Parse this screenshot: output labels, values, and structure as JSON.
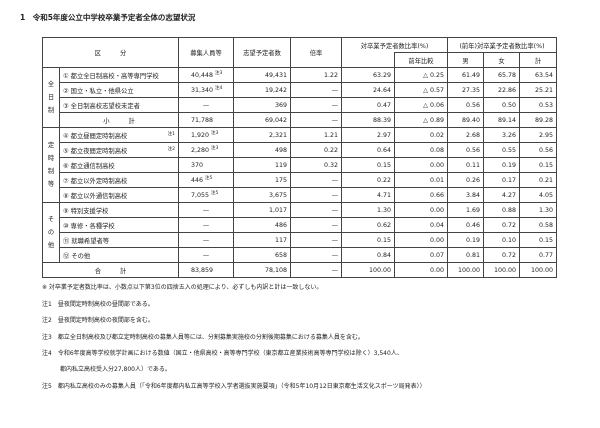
{
  "title": "1　令和5年度公立中学校卒業予定者全体の志望状況",
  "headers": {
    "category": "区　　　分",
    "recruit": "募集人員等",
    "applicants": "志望予定者数",
    "ratio": "倍率",
    "share": "対卒業予定者数比率(%)",
    "prev_compare": "前年比較",
    "prev_share": "(前年)対卒業予定者数比率(%)",
    "male": "男",
    "female": "女",
    "total": "計"
  },
  "groups": [
    {
      "label": "全日制",
      "rows": [
        {
          "name": "① 都立全日制高校・高等専門学校",
          "name_note": "",
          "recruit": "40,448",
          "recruit_note": "注3",
          "applicants": "49,431",
          "ratio": "1.22",
          "share": "63.29",
          "diff": "△ 0.25",
          "m": "61.49",
          "f": "65.78",
          "t": "63.54"
        },
        {
          "name": "② 国立・私立・他県公立",
          "name_note": "",
          "recruit": "31,340",
          "recruit_note": "注4",
          "applicants": "19,242",
          "ratio": "—",
          "share": "24.64",
          "diff": "△ 0.57",
          "m": "27.35",
          "f": "22.86",
          "t": "25.21"
        },
        {
          "name": "③ 全日制高校志望校未定者",
          "name_note": "",
          "recruit": "—",
          "recruit_note": "",
          "applicants": "369",
          "ratio": "—",
          "share": "0.47",
          "diff": "△ 0.06",
          "m": "0.56",
          "f": "0.50",
          "t": "0.53"
        },
        {
          "name": "小　　　計",
          "subtotal": true,
          "name_note": "",
          "recruit": "71,788",
          "recruit_note": "",
          "applicants": "69,042",
          "ratio": "—",
          "share": "88.39",
          "diff": "△ 0.89",
          "m": "89.40",
          "f": "89.14",
          "t": "89.28"
        }
      ]
    },
    {
      "label": "定時制等",
      "rows": [
        {
          "name": "④ 都立昼間定時制高校",
          "name_note": "注1",
          "recruit": "1,920",
          "recruit_note": "注3",
          "applicants": "2,321",
          "ratio": "1.21",
          "share": "2.97",
          "diff": "0.02",
          "m": "2.68",
          "f": "3.26",
          "t": "2.95"
        },
        {
          "name": "⑤ 都立夜間定時制高校",
          "name_note": "注2",
          "recruit": "2,280",
          "recruit_note": "注3",
          "applicants": "498",
          "ratio": "0.22",
          "share": "0.64",
          "diff": "0.08",
          "m": "0.56",
          "f": "0.55",
          "t": "0.56"
        },
        {
          "name": "⑥ 都立通信制高校",
          "name_note": "",
          "recruit": "370",
          "recruit_note": "",
          "applicants": "119",
          "ratio": "0.32",
          "share": "0.15",
          "diff": "0.00",
          "m": "0.11",
          "f": "0.19",
          "t": "0.15"
        },
        {
          "name": "⑦ 都立以外定時制高校",
          "name_note": "",
          "recruit": "446",
          "recruit_note": "注5",
          "applicants": "175",
          "ratio": "—",
          "share": "0.22",
          "diff": "0.01",
          "m": "0.26",
          "f": "0.17",
          "t": "0.21"
        },
        {
          "name": "⑧ 都立以外通信制高校",
          "name_note": "",
          "recruit": "7,055",
          "recruit_note": "注5",
          "applicants": "3,675",
          "ratio": "—",
          "share": "4.71",
          "diff": "0.66",
          "m": "3.84",
          "f": "4.27",
          "t": "4.05"
        }
      ]
    },
    {
      "label": "その他",
      "rows": [
        {
          "name": "⑨ 特別支援学校",
          "name_note": "",
          "recruit": "—",
          "recruit_note": "",
          "applicants": "1,017",
          "ratio": "—",
          "share": "1.30",
          "diff": "0.00",
          "m": "1.69",
          "f": "0.88",
          "t": "1.30"
        },
        {
          "name": "⑩ 専修・各種学校",
          "name_note": "",
          "recruit": "—",
          "recruit_note": "",
          "applicants": "486",
          "ratio": "—",
          "share": "0.62",
          "diff": "0.04",
          "m": "0.46",
          "f": "0.72",
          "t": "0.58"
        },
        {
          "name": "⑪ 就職希望者等",
          "name_note": "",
          "recruit": "—",
          "recruit_note": "",
          "applicants": "117",
          "ratio": "—",
          "share": "0.15",
          "diff": "0.00",
          "m": "0.19",
          "f": "0.10",
          "t": "0.15"
        },
        {
          "name": "⑫ その他",
          "name_note": "",
          "recruit": "—",
          "recruit_note": "",
          "applicants": "658",
          "ratio": "—",
          "share": "0.84",
          "diff": "0.07",
          "m": "0.81",
          "f": "0.72",
          "t": "0.77"
        }
      ]
    }
  ],
  "total": {
    "name": "合　　　計",
    "recruit": "83,859",
    "applicants": "78,108",
    "ratio": "—",
    "share": "100.00",
    "diff": "0.00",
    "m": "100.00",
    "f": "100.00",
    "t": "100.00"
  },
  "notes": [
    "※ 対卒業予定者数比率は、小数点以下第3位の四捨五入の処理により、必ずしも内訳と計は一致しない。",
    "注1　昼夜間定時制高校の昼間部である。",
    "注2　昼夜間定時制高校の夜間部を含む。",
    "注3　都立全日制高校及び都立定時制高校の募集人員等には、分割募集実施校の分割後期募集における募集人員を含む。",
    "注4　令和6年度高等学校就学計画における数値（国立・他県高校・高等専門学校（東京都立産業技術高等専門学校は除く）3,540人、",
    "　　　都内私立高校受入分27,800人）である。",
    "注5　都内私立高校のみの募集人員（「令和6年度都内私立高等学校入学者選抜実施要項」（令和5年10月12日東京都生活文化スポーツ局発表））"
  ]
}
